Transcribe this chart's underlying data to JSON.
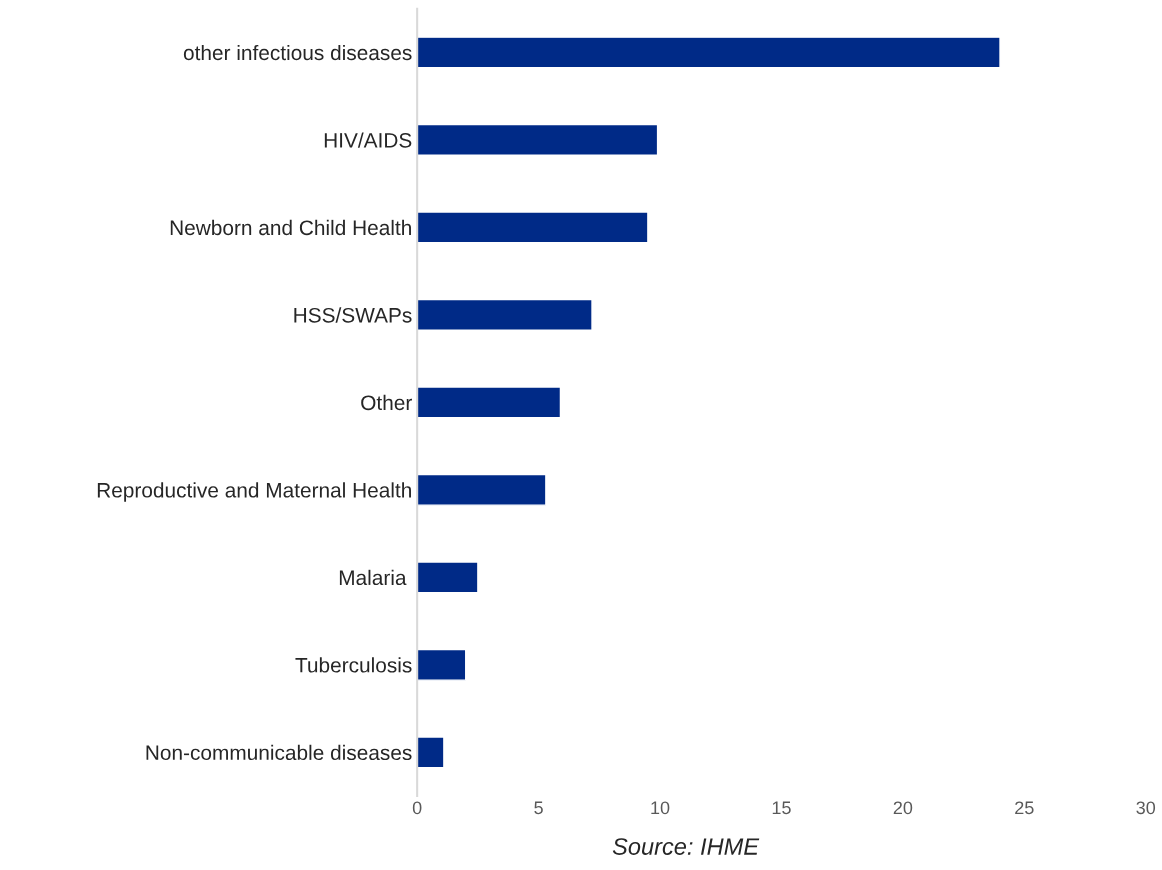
{
  "chart_data": {
    "type": "bar",
    "orientation": "horizontal",
    "categories": [
      "other infectious diseases",
      "HIV/AIDS",
      "Newborn and Child Health",
      "HSS/SWAPs",
      "Other",
      "Reproductive and Maternal Health",
      "Malaria ",
      "Tuberculosis",
      "Non-communicable diseases"
    ],
    "values": [
      24.0,
      9.9,
      9.5,
      7.2,
      5.9,
      5.3,
      2.5,
      2.0,
      1.1
    ],
    "color": "#002a87",
    "xlim": [
      0,
      30
    ],
    "xticks": [
      0,
      5,
      10,
      15,
      20,
      25,
      30
    ],
    "grid": false,
    "annotations": [
      "Source: IHME"
    ]
  }
}
